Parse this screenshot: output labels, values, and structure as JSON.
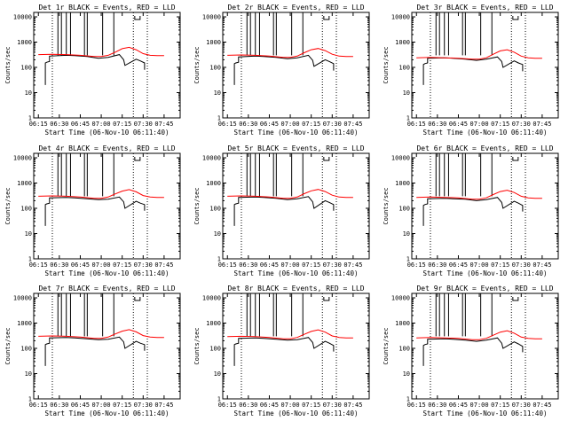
{
  "chart_data": {
    "type": "line",
    "xlabel_prefix": "Start Time",
    "ylabel": "Counts/sec",
    "yscale": "log",
    "ylim": [
      1,
      15000
    ],
    "y_ticks": [
      "1",
      "10",
      "100",
      "1000",
      "10000"
    ],
    "x_ticks": [
      "06:15",
      "06:30",
      "06:45",
      "07:00",
      "07:15",
      "07:30",
      "07:45"
    ],
    "x_tick_minutes": [
      375,
      390,
      405,
      420,
      435,
      450,
      465
    ],
    "xlim_minutes": [
      371.67,
      476.5
    ],
    "marker_minutes": [
      385,
      443,
      453
    ],
    "series_colors": {
      "events": "#000000",
      "lld": "#ff0000"
    },
    "panels": [
      {
        "title": "Det 1r BLACK = Events, RED = LLD",
        "start_time": "(06-Nov-10 06:11:40)",
        "events": {
          "minutes": [
            380,
            380,
            381,
            383,
            383,
            395,
            401,
            410,
            418,
            425,
            433,
            436,
            437,
            445,
            448,
            451,
            451
          ],
          "values": [
            20,
            150,
            160,
            170,
            280,
            300,
            290,
            270,
            230,
            250,
            320,
            200,
            120,
            210,
            180,
            150,
            80
          ]
        },
        "lld": {
          "minutes": [
            375,
            385,
            395,
            405,
            415,
            420,
            425,
            430,
            435,
            440,
            445,
            450,
            455,
            460,
            465
          ],
          "values": [
            320,
            330,
            320,
            300,
            270,
            270,
            300,
            400,
            550,
            620,
            500,
            350,
            300,
            290,
            290
          ]
        }
      },
      {
        "title": "Det 2r BLACK = Events, RED = LLD",
        "start_time": "(06-Nov-10 06:11:40)",
        "events": {
          "minutes": [
            380,
            380,
            381,
            383,
            383,
            395,
            401,
            410,
            418,
            425,
            433,
            436,
            437,
            445,
            448,
            451,
            451
          ],
          "values": [
            20,
            140,
            150,
            160,
            260,
            280,
            270,
            250,
            220,
            240,
            300,
            190,
            110,
            200,
            170,
            140,
            75
          ]
        },
        "lld": {
          "minutes": [
            375,
            385,
            395,
            405,
            415,
            420,
            425,
            430,
            435,
            440,
            445,
            450,
            455,
            460,
            465
          ],
          "values": [
            300,
            310,
            300,
            280,
            250,
            250,
            280,
            380,
            500,
            560,
            460,
            330,
            280,
            270,
            270
          ]
        }
      },
      {
        "title": "Det 3r BLACK = Events, RED = LLD",
        "start_time": "(06-Nov-10 06:11:40)",
        "events": {
          "minutes": [
            380,
            380,
            381,
            383,
            383,
            395,
            401,
            410,
            418,
            425,
            433,
            436,
            437,
            445,
            448,
            451,
            451
          ],
          "values": [
            20,
            130,
            140,
            150,
            230,
            240,
            230,
            210,
            190,
            210,
            260,
            170,
            100,
            180,
            150,
            130,
            70
          ]
        },
        "lld": {
          "minutes": [
            375,
            385,
            395,
            405,
            415,
            420,
            425,
            430,
            435,
            440,
            445,
            450,
            455,
            460,
            465
          ],
          "values": [
            240,
            250,
            240,
            230,
            210,
            210,
            240,
            330,
            450,
            500,
            400,
            280,
            240,
            230,
            230
          ]
        }
      },
      {
        "title": "Det 4r BLACK = Events, RED = LLD",
        "start_time": "(06-Nov-10 06:11:40)",
        "events": {
          "minutes": [
            380,
            380,
            381,
            383,
            383,
            395,
            401,
            410,
            418,
            425,
            433,
            436,
            437,
            445,
            448,
            451,
            451
          ],
          "values": [
            20,
            140,
            150,
            160,
            260,
            270,
            260,
            240,
            220,
            230,
            280,
            180,
            100,
            190,
            160,
            140,
            80
          ]
        },
        "lld": {
          "minutes": [
            375,
            385,
            395,
            405,
            415,
            420,
            425,
            430,
            435,
            440,
            445,
            450,
            455,
            460,
            465
          ],
          "values": [
            300,
            310,
            300,
            280,
            250,
            250,
            280,
            370,
            480,
            550,
            450,
            320,
            280,
            270,
            270
          ]
        }
      },
      {
        "title": "Det 5r BLACK = Events, RED = LLD",
        "start_time": "(06-Nov-10 06:11:40)",
        "events": {
          "minutes": [
            380,
            380,
            381,
            383,
            383,
            395,
            401,
            410,
            418,
            425,
            433,
            436,
            437,
            445,
            448,
            451,
            451
          ],
          "values": [
            20,
            140,
            150,
            160,
            270,
            280,
            270,
            250,
            220,
            240,
            290,
            180,
            100,
            200,
            170,
            140,
            80
          ]
        },
        "lld": {
          "minutes": [
            375,
            385,
            395,
            405,
            415,
            420,
            425,
            430,
            435,
            440,
            445,
            450,
            455,
            460,
            465
          ],
          "values": [
            300,
            310,
            300,
            280,
            250,
            250,
            280,
            380,
            490,
            560,
            460,
            330,
            280,
            270,
            270
          ]
        }
      },
      {
        "title": "Det 6r BLACK = Events, RED = LLD",
        "start_time": "(06-Nov-10 06:11:40)",
        "events": {
          "minutes": [
            380,
            380,
            381,
            383,
            383,
            395,
            401,
            410,
            418,
            425,
            433,
            436,
            437,
            445,
            448,
            451,
            451
          ],
          "values": [
            20,
            130,
            140,
            150,
            240,
            250,
            240,
            230,
            200,
            220,
            270,
            170,
            100,
            190,
            160,
            130,
            75
          ]
        },
        "lld": {
          "minutes": [
            375,
            385,
            395,
            405,
            415,
            420,
            425,
            430,
            435,
            440,
            445,
            450,
            455,
            460,
            465
          ],
          "values": [
            270,
            280,
            270,
            260,
            230,
            230,
            260,
            350,
            460,
            520,
            420,
            300,
            260,
            250,
            250
          ]
        }
      },
      {
        "title": "Det 7r BLACK = Events, RED = LLD",
        "start_time": "(06-Nov-10 06:11:40)",
        "events": {
          "minutes": [
            380,
            380,
            381,
            383,
            383,
            395,
            401,
            410,
            418,
            425,
            433,
            436,
            437,
            445,
            448,
            451,
            451
          ],
          "values": [
            20,
            140,
            150,
            160,
            260,
            270,
            260,
            240,
            220,
            230,
            280,
            180,
            100,
            190,
            160,
            140,
            80
          ]
        },
        "lld": {
          "minutes": [
            375,
            385,
            395,
            405,
            415,
            420,
            425,
            430,
            435,
            440,
            445,
            450,
            455,
            460,
            465
          ],
          "values": [
            300,
            310,
            300,
            280,
            250,
            250,
            280,
            370,
            480,
            550,
            450,
            320,
            280,
            270,
            270
          ]
        }
      },
      {
        "title": "Det 8r BLACK = Events, RED = LLD",
        "start_time": "(06-Nov-10 06:11:40)",
        "events": {
          "minutes": [
            380,
            380,
            381,
            383,
            383,
            395,
            401,
            410,
            418,
            425,
            433,
            436,
            437,
            445,
            448,
            451,
            451
          ],
          "values": [
            20,
            140,
            150,
            160,
            250,
            260,
            250,
            230,
            210,
            220,
            270,
            170,
            100,
            190,
            160,
            130,
            75
          ]
        },
        "lld": {
          "minutes": [
            375,
            385,
            395,
            405,
            415,
            420,
            425,
            430,
            435,
            440,
            445,
            450,
            455,
            460,
            465
          ],
          "values": [
            290,
            300,
            290,
            270,
            240,
            240,
            270,
            360,
            470,
            540,
            440,
            310,
            270,
            260,
            260
          ]
        }
      },
      {
        "title": "Det 9r BLACK = Events, RED = LLD",
        "start_time": "(06-Nov-10 06:11:40)",
        "events": {
          "minutes": [
            380,
            380,
            381,
            383,
            383,
            395,
            401,
            410,
            418,
            425,
            433,
            436,
            437,
            445,
            448,
            451,
            451
          ],
          "values": [
            20,
            130,
            140,
            150,
            230,
            240,
            230,
            210,
            190,
            210,
            260,
            160,
            100,
            180,
            150,
            120,
            70
          ]
        },
        "lld": {
          "minutes": [
            375,
            385,
            395,
            405,
            415,
            420,
            425,
            430,
            435,
            440,
            445,
            450,
            455,
            460,
            465
          ],
          "values": [
            260,
            270,
            260,
            250,
            220,
            220,
            250,
            330,
            440,
            500,
            400,
            280,
            250,
            240,
            240
          ]
        }
      }
    ],
    "events_spikes_minutes": [
      [
        389,
        391.5,
        395,
        398,
        408,
        410,
        421,
        429
      ],
      [
        389,
        391.5,
        395,
        398,
        408,
        410,
        421,
        429
      ],
      [
        389,
        391.5,
        395,
        398,
        408,
        410,
        421,
        429
      ],
      [
        389,
        391.5,
        395,
        398,
        408,
        410,
        421,
        429
      ],
      [
        389,
        391.5,
        395,
        398,
        408,
        410,
        421,
        429
      ],
      [
        389,
        391.5,
        395,
        398,
        408,
        410,
        421,
        429
      ],
      [
        389,
        391.5,
        395,
        398,
        408,
        410,
        421,
        429
      ],
      [
        389,
        391.5,
        395,
        398,
        408,
        410,
        421,
        429
      ],
      [
        389,
        391.5,
        395,
        398,
        408,
        410,
        421,
        429
      ]
    ]
  }
}
